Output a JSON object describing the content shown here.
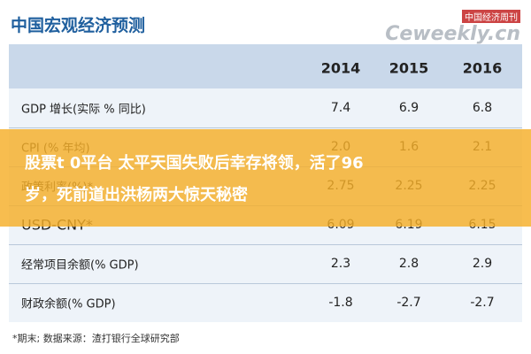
{
  "header": {
    "title": "中国宏观经济预测",
    "watermark_cn": "中国经济周刊",
    "watermark_en": "Ceweekly.cn"
  },
  "table": {
    "columns": [
      "2014",
      "2015",
      "2016"
    ],
    "rows": [
      [
        "GDP 增长(实际 % 同比)",
        "7.4",
        "6.9",
        "6.8"
      ],
      [
        "CPI (% 年均)",
        "2.0",
        "1.6",
        "2.1"
      ],
      [
        "政策利率(%)*",
        "2.75",
        "2.25",
        "2.25"
      ],
      [
        "USD-CNY*",
        "6.09",
        "6.19",
        "6.15"
      ],
      [
        "经常项目余额(% GDP)",
        "2.3",
        "2.8",
        "2.9"
      ],
      [
        "财政余额(% GDP)",
        "-1.8",
        "-2.7",
        "-2.7"
      ]
    ]
  },
  "footnote": "*期末;   数据来源：渣打银行全球研究部",
  "banner": {
    "lines": [
      "股票t 0平台 太平天国失败后幸存将领，活了96",
      "岁，死前道出洪杨两大惊天秘密"
    ]
  }
}
